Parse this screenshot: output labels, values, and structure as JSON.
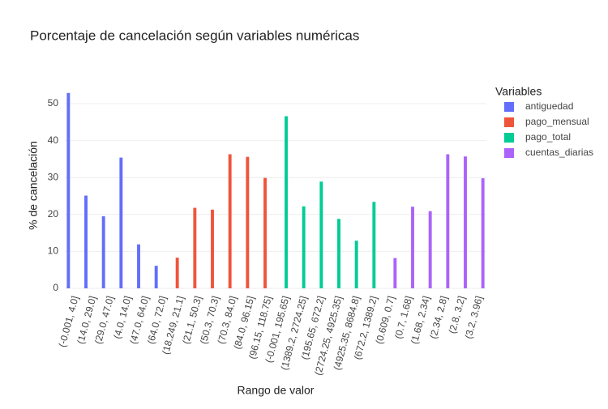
{
  "chart_data": {
    "type": "bar",
    "title": "Porcentaje de cancelación según variables numéricas",
    "x_label": "Rango de valor",
    "y_label": "% de cancelación",
    "legend_title": "Variables",
    "categories": [
      "(-0.001, 4.0]",
      "(14.0, 29.0]",
      "(29.0, 47.0]",
      "(4.0, 14.0]",
      "(47.0, 64.0]",
      "(64.0, 72.0]",
      "(18.249, 21.1]",
      "(21.1, 50.3]",
      "(50.3, 70.3]",
      "(70.3, 84.0]",
      "(84.0, 96.15]",
      "(96.15, 118.75]",
      "(-0.001, 195.65]",
      "(1389.2, 2724.25]",
      "(195.65, 672.2]",
      "(2724.25, 4925.35]",
      "(4925.35, 8684.8]",
      "(672.2, 1389.2]",
      "(0.609, 0.7]",
      "(0.7, 1.68]",
      "(1.68, 2.34]",
      "(2.34, 2.8]",
      "(2.8, 3.2]",
      "(3.2, 3.96]"
    ],
    "series": [
      {
        "name": "antiguedad",
        "color": "#636efa",
        "values": [
          52.9,
          25.1,
          19.5,
          35.4,
          11.9,
          6.1,
          null,
          null,
          null,
          null,
          null,
          null,
          null,
          null,
          null,
          null,
          null,
          null,
          null,
          null,
          null,
          null,
          null,
          null
        ]
      },
      {
        "name": "pago_mensual",
        "color": "#ef553b",
        "values": [
          null,
          null,
          null,
          null,
          null,
          null,
          8.3,
          21.8,
          21.3,
          36.3,
          35.6,
          29.9,
          null,
          null,
          null,
          null,
          null,
          null,
          null,
          null,
          null,
          null,
          null,
          null
        ]
      },
      {
        "name": "pago_total",
        "color": "#00cc96",
        "values": [
          null,
          null,
          null,
          null,
          null,
          null,
          null,
          null,
          null,
          null,
          null,
          null,
          46.6,
          22.2,
          28.9,
          18.8,
          12.9,
          23.4,
          null,
          null,
          null,
          null,
          null,
          null
        ]
      },
      {
        "name": "cuentas_diarias",
        "color": "#ab63fa",
        "values": [
          null,
          null,
          null,
          null,
          null,
          null,
          null,
          null,
          null,
          null,
          null,
          null,
          null,
          null,
          null,
          null,
          null,
          null,
          8.2,
          22.1,
          20.9,
          36.3,
          35.7,
          29.8
        ]
      }
    ],
    "ylim": [
      0,
      55.7
    ],
    "yticks": [
      0,
      10,
      20,
      30,
      40,
      50
    ],
    "grid": true,
    "legend": "right"
  }
}
